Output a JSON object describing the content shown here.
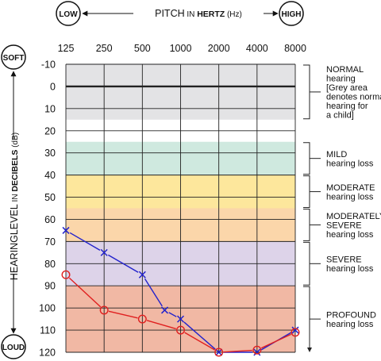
{
  "header": {
    "low_label": "LOW",
    "high_label": "HIGH",
    "pitch_word": "PITCH",
    "pitch_in": " IN ",
    "pitch_unit": "HERTZ",
    "pitch_paren": " (Hz)",
    "soft_label": "SOFT",
    "loud_label": "LOUD",
    "level_word": "HEARINGLEVEL",
    "level_in": " IN ",
    "level_unit": "DECIBELS",
    "level_paren": " (dB)"
  },
  "chart_data": {
    "type": "line",
    "title": "",
    "xlabel": "PITCH IN HERTZ (Hz)",
    "ylabel": "HEARINGLEVEL IN DECIBELS (dB)",
    "x_ticks": [
      "125",
      "250",
      "500",
      "1000",
      "2000",
      "4000",
      "8000"
    ],
    "y_ticks": [
      "-10",
      "0",
      "10",
      "20",
      "30",
      "40",
      "50",
      "60",
      "70",
      "80",
      "90",
      "100",
      "110",
      "120"
    ],
    "ylim": [
      -10,
      120
    ],
    "y_inverted": true,
    "x_scale": "log",
    "bands": [
      {
        "from": -10,
        "to": 15,
        "color": "#e3e3e5",
        "lines": [
          "NORMAL",
          "hearing",
          "[Grey area",
          "denotes normal",
          "hearing for",
          "a child]"
        ]
      },
      {
        "from": 25,
        "to": 40,
        "color": "#cfe9df",
        "lines": [
          "MILD",
          "hearing loss"
        ]
      },
      {
        "from": 40,
        "to": 55,
        "color": "#fde79c",
        "lines": [
          "MODERATE",
          "hearing loss"
        ]
      },
      {
        "from": 55,
        "to": 70,
        "color": "#fbd6aa",
        "lines": [
          "MODERATELY",
          "SEVERE",
          "hearing loss"
        ]
      },
      {
        "from": 70,
        "to": 90,
        "color": "#ddd3e9",
        "lines": [
          "SEVERE",
          "hearing loss"
        ]
      },
      {
        "from": 90,
        "to": 120,
        "color": "#f1b8a4",
        "lines": [
          "PROFOUND",
          "hearing loss"
        ]
      }
    ],
    "series": [
      {
        "marker": "x",
        "color": "#2222cc",
        "points": [
          [
            125,
            65
          ],
          [
            250,
            75
          ],
          [
            500,
            85
          ],
          [
            750,
            101
          ],
          [
            1000,
            105
          ],
          [
            2000,
            120
          ],
          [
            4000,
            120
          ],
          [
            8000,
            110
          ]
        ]
      },
      {
        "marker": "o",
        "color": "#e02020",
        "points": [
          [
            125,
            85
          ],
          [
            250,
            101
          ],
          [
            500,
            105
          ],
          [
            1000,
            110
          ],
          [
            2000,
            120
          ],
          [
            4000,
            119
          ],
          [
            8000,
            111
          ]
        ]
      }
    ]
  }
}
